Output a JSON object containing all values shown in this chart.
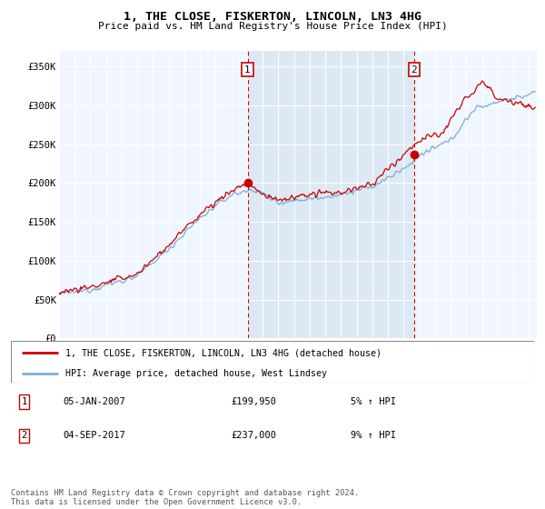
{
  "title": "1, THE CLOSE, FISKERTON, LINCOLN, LN3 4HG",
  "subtitle": "Price paid vs. HM Land Registry's House Price Index (HPI)",
  "legend_line1": "1, THE CLOSE, FISKERTON, LINCOLN, LN3 4HG (detached house)",
  "legend_line2": "HPI: Average price, detached house, West Lindsey",
  "annotation1_label": "1",
  "annotation1_date": "05-JAN-2007",
  "annotation1_price": "£199,950",
  "annotation1_hpi": "5% ↑ HPI",
  "annotation2_label": "2",
  "annotation2_date": "04-SEP-2017",
  "annotation2_price": "£237,000",
  "annotation2_hpi": "9% ↑ HPI",
  "footnote": "Contains HM Land Registry data © Crown copyright and database right 2024.\nThis data is licensed under the Open Government Licence v3.0.",
  "hpi_color": "#7aaed4",
  "price_color": "#cc0000",
  "annotation_color": "#cc0000",
  "bg_color": "#dce9f5",
  "bg_color_outer": "#f0f6ff",
  "ylim": [
    0,
    370000
  ],
  "yticks": [
    0,
    50000,
    100000,
    150000,
    200000,
    250000,
    300000,
    350000
  ],
  "ytick_labels": [
    "£0",
    "£50K",
    "£100K",
    "£150K",
    "£200K",
    "£250K",
    "£300K",
    "£350K"
  ],
  "anno1_x_year": 2007.04,
  "anno2_x_year": 2017.67,
  "anno1_y": 199950,
  "anno2_y": 237000,
  "xmin": 1995,
  "xmax": 2025.5
}
